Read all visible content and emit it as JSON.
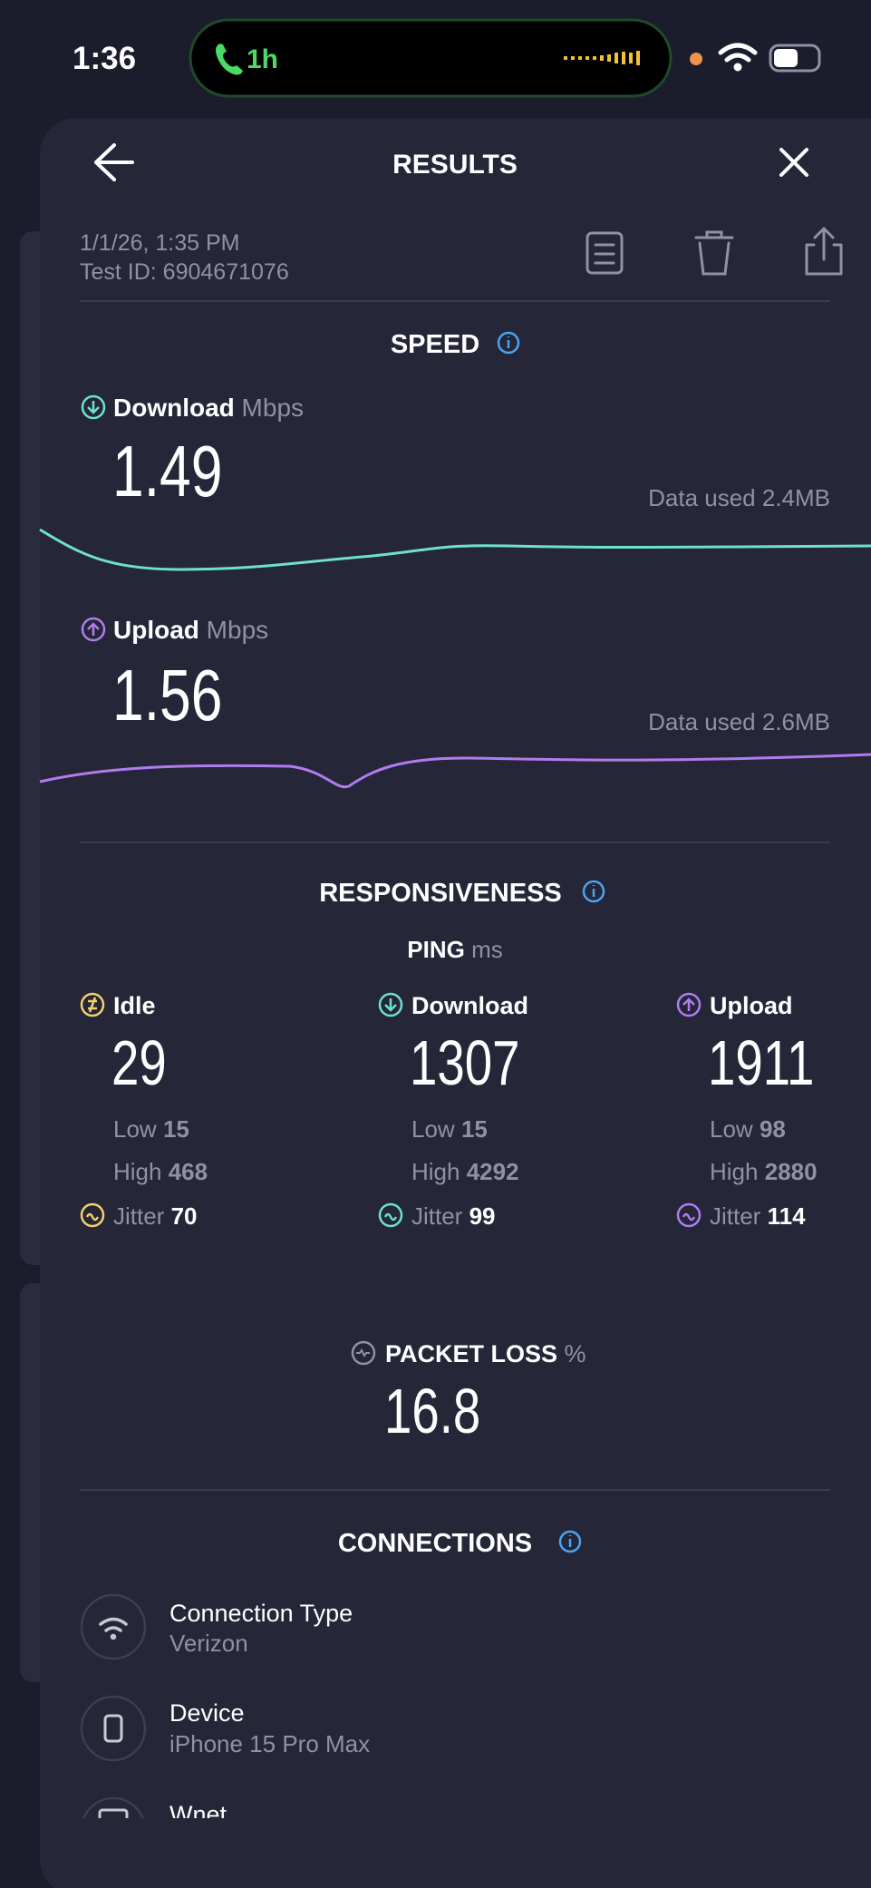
{
  "status_bar": {
    "time": "1:36",
    "call": "1h"
  },
  "header": {
    "title": "RESULTS",
    "date": "1/1/26, 1:35 PM",
    "test_id": "Test ID: 6904671076"
  },
  "speed": {
    "title": "SPEED",
    "download": {
      "label": "Download",
      "unit": "Mbps",
      "value": 1.49,
      "data_used": "Data used 2.4MB"
    },
    "upload": {
      "label": "Upload",
      "unit": "Mbps",
      "value": 1.56,
      "data_used": "Data used 2.6MB"
    }
  },
  "responsiveness": {
    "title": "RESPONSIVENESS",
    "ping_label": "PING",
    "ping_unit": "ms",
    "columns": [
      {
        "label": "Idle",
        "value": 29,
        "low_label": "Low",
        "low": 15,
        "high_label": "High",
        "high": 468,
        "jitter_label": "Jitter",
        "jitter": 70
      },
      {
        "label": "Download",
        "value": 1307,
        "low_label": "Low",
        "low": 15,
        "high_label": "High",
        "high": 4292,
        "jitter_label": "Jitter",
        "jitter": 99
      },
      {
        "label": "Upload",
        "value": 1911,
        "low_label": "Low",
        "low": 98,
        "high_label": "High",
        "high": 2880,
        "jitter_label": "Jitter",
        "jitter": 114
      }
    ]
  },
  "packet_loss": {
    "label": "PACKET LOSS",
    "unit": "%",
    "value": 16.8
  },
  "connections": {
    "title": "CONNECTIONS",
    "items": [
      {
        "label": "Connection Type",
        "value": "Verizon"
      },
      {
        "label": "Device",
        "value": "iPhone 15 Pro Max"
      },
      {
        "label": "Wnet"
      }
    ]
  }
}
